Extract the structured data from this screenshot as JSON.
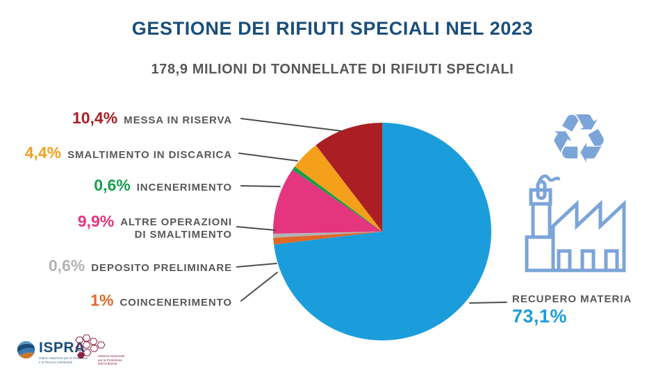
{
  "chart_data": {
    "type": "pie",
    "title": "GESTIONE DEI RIFIUTI SPECIALI NEL 2023",
    "subtitle": "178,9 MILIONI DI TONNELLATE DI RIFIUTI SPECIALI",
    "unit": "%",
    "start_angle_deg": -90,
    "direction": "clockwise",
    "legend_position": "labels-around-pie",
    "slices": [
      {
        "key": "recupero-materia",
        "label": "RECUPERO MATERIA",
        "value": 73.1,
        "pct_label": "73,1%",
        "color": "#1B9DDC"
      },
      {
        "key": "coincenerimento",
        "label": "COINCENERIMENTO",
        "value": 1.0,
        "pct_label": "1%",
        "color": "#E06827"
      },
      {
        "key": "deposito-preliminare",
        "label": "DEPOSITO PRELIMINARE",
        "value": 0.6,
        "pct_label": "0,6%",
        "color": "#B2B3B5"
      },
      {
        "key": "altre-operazioni-di-smaltimento",
        "label": "ALTRE OPERAZIONI DI SMALTIMENTO",
        "label_lines": [
          "ALTRE OPERAZIONI",
          "DI SMALTIMENTO"
        ],
        "value": 9.9,
        "pct_label": "9,9%",
        "color": "#E5357F"
      },
      {
        "key": "incenerimento",
        "label": "INCENERIMENTO",
        "value": 0.6,
        "pct_label": "0,6%",
        "color": "#1B9C4B"
      },
      {
        "key": "smaltimento-in-discarica",
        "label": "SMALTIMENTO IN DISCARICA",
        "value": 4.4,
        "pct_label": "4,4%",
        "color": "#F5A01B"
      },
      {
        "key": "messa-in-riserva",
        "label": "MESSA IN RISERVA",
        "value": 10.4,
        "pct_label": "10,4%",
        "color": "#AB1F24"
      }
    ]
  },
  "icons": {
    "recycle_glyph": "♻",
    "color": "#7BA4D9"
  },
  "footer": {
    "ispra": {
      "name": "ISPRA",
      "tagline_line1": "Istituto Superiore per la Protezione",
      "tagline_line2": "e la Ricerca Ambientale"
    },
    "snpa": {
      "line1": "Sistema Nazionale",
      "line2": "per la Protezione",
      "line3": "dell'Ambiente"
    }
  }
}
